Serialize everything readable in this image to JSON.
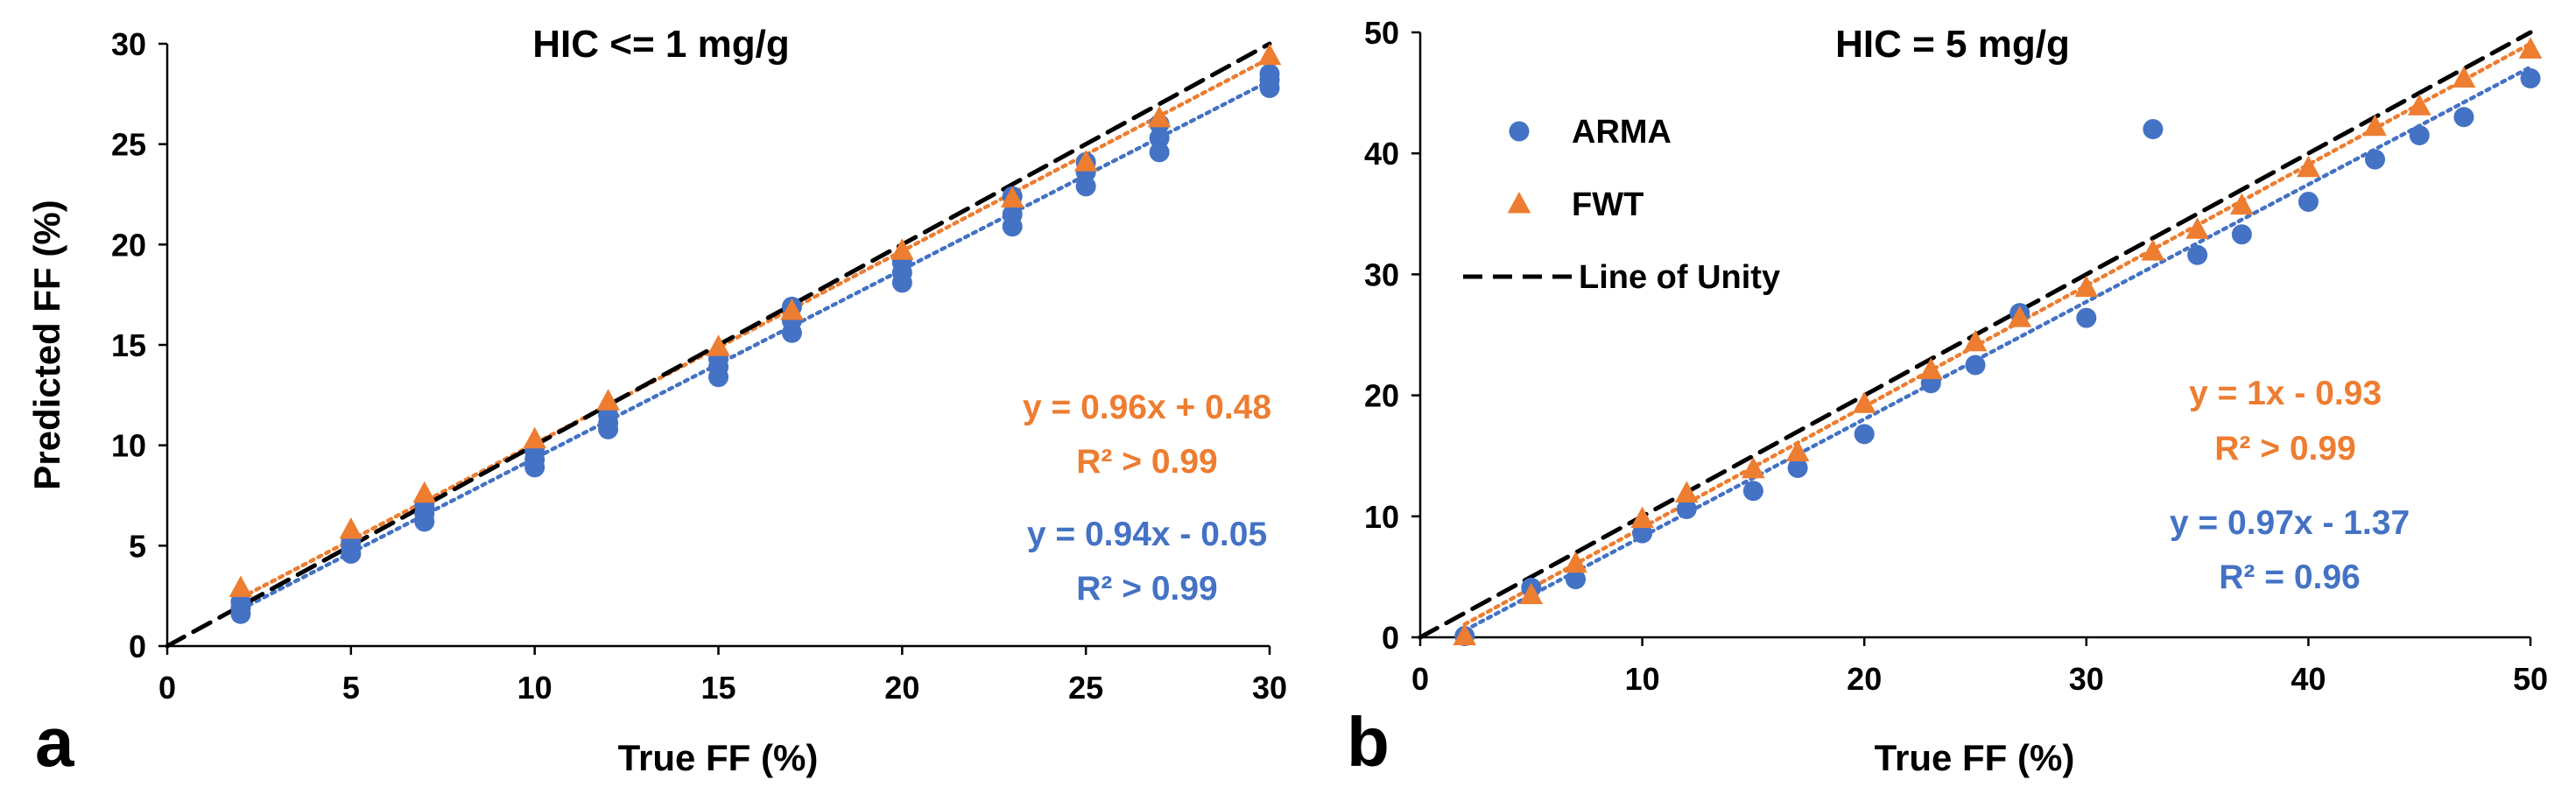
{
  "chart_data": [
    {
      "type": "scatter",
      "panel_label": "a",
      "title": "HIC <= 1 mg/g",
      "xlabel": "True FF (%)",
      "ylabel": "Predicted FF (%)",
      "xlim": [
        0,
        30
      ],
      "ylim": [
        0,
        30
      ],
      "xticks": [
        "0",
        "5",
        "10",
        "15",
        "20",
        "25",
        "30"
      ],
      "yticks": [
        "0",
        "5",
        "10",
        "15",
        "20",
        "25",
        "30"
      ],
      "grid": false,
      "series": [
        {
          "name": "ARMA",
          "marker": "circle",
          "color": "#4472C4",
          "x": [
            2,
            2,
            2,
            5,
            5,
            5,
            7,
            7,
            7,
            10,
            10,
            10,
            12,
            12,
            12,
            15,
            15,
            15,
            17,
            17,
            17,
            20,
            20,
            20,
            23,
            23,
            23,
            25,
            25,
            25,
            27,
            27,
            27,
            30,
            30,
            30
          ],
          "y": [
            1.6,
            1.9,
            2.2,
            4.6,
            4.9,
            5.2,
            6.2,
            6.6,
            7.0,
            8.9,
            9.3,
            9.7,
            10.8,
            11.1,
            11.5,
            13.4,
            13.9,
            14.3,
            15.6,
            16.2,
            16.9,
            18.1,
            18.6,
            19.1,
            20.9,
            21.5,
            22.4,
            22.9,
            23.6,
            24.1,
            24.6,
            25.3,
            26.0,
            27.8,
            28.2,
            28.5
          ]
        },
        {
          "name": "FWT",
          "marker": "triangle",
          "color": "#ED7D31",
          "x": [
            2,
            5,
            7,
            10,
            12,
            15,
            17,
            20,
            23,
            25,
            27,
            30
          ],
          "y": [
            2.9,
            5.8,
            7.6,
            10.3,
            12.2,
            14.9,
            16.7,
            19.7,
            22.3,
            24.1,
            26.3,
            29.4
          ]
        }
      ],
      "fits": [
        {
          "series": "ARMA",
          "slope": 0.94,
          "intercept": -0.05,
          "style": "dotted",
          "color": "#4472C4"
        },
        {
          "series": "FWT",
          "slope": 0.96,
          "intercept": 0.48,
          "style": "dotted",
          "color": "#ED7D31"
        },
        {
          "series": "Line of Unity",
          "slope": 1,
          "intercept": 0,
          "style": "dashed",
          "color": "#000000"
        }
      ],
      "annotations": [
        {
          "text": "y = 0.96x + 0.48",
          "color": "#ED7D31"
        },
        {
          "text": "R² > 0.99",
          "color": "#ED7D31"
        },
        {
          "text": "y = 0.94x - 0.05",
          "color": "#4472C4"
        },
        {
          "text": "R² > 0.99",
          "color": "#4472C4"
        }
      ]
    },
    {
      "type": "scatter",
      "panel_label": "b",
      "title": "HIC = 5 mg/g",
      "xlabel": "True FF (%)",
      "ylabel": "",
      "xlim": [
        0,
        50
      ],
      "ylim": [
        0,
        50
      ],
      "xticks": [
        "0",
        "10",
        "20",
        "30",
        "40",
        "50"
      ],
      "yticks": [
        "0",
        "10",
        "20",
        "30",
        "40",
        "50"
      ],
      "grid": false,
      "legend": {
        "position": "upper-left",
        "entries": [
          {
            "label": "ARMA",
            "marker": "circle",
            "color": "#4472C4"
          },
          {
            "label": "FWT",
            "marker": "triangle",
            "color": "#ED7D31"
          },
          {
            "label": "Line of Unity",
            "marker": "dashed-line",
            "color": "#000000"
          }
        ]
      },
      "series": [
        {
          "name": "ARMA",
          "marker": "circle",
          "color": "#4472C4",
          "x": [
            2,
            5,
            7,
            10,
            12,
            15,
            17,
            20,
            23,
            25,
            27,
            30,
            33,
            35,
            37,
            40,
            43,
            45,
            47,
            50
          ],
          "y": [
            0.1,
            4.1,
            4.8,
            8.6,
            10.6,
            12.1,
            14.0,
            16.8,
            21.0,
            22.5,
            26.8,
            26.4,
            42.0,
            31.6,
            33.3,
            36.0,
            39.5,
            41.5,
            43.0,
            46.2
          ]
        },
        {
          "name": "FWT",
          "marker": "triangle",
          "color": "#ED7D31",
          "x": [
            2,
            5,
            7,
            10,
            12,
            15,
            17,
            20,
            23,
            25,
            27,
            30,
            33,
            35,
            37,
            40,
            43,
            45,
            47,
            50
          ],
          "y": [
            0.1,
            3.5,
            6.1,
            9.8,
            11.9,
            13.9,
            15.3,
            19.3,
            22.1,
            24.4,
            26.4,
            28.9,
            31.9,
            33.7,
            35.7,
            38.8,
            42.2,
            43.9,
            46.2,
            48.6
          ]
        }
      ],
      "fits": [
        {
          "series": "ARMA",
          "slope": 0.97,
          "intercept": -1.37,
          "style": "dotted",
          "color": "#4472C4"
        },
        {
          "series": "FWT",
          "slope": 1,
          "intercept": -0.93,
          "style": "dotted",
          "color": "#ED7D31"
        },
        {
          "series": "Line of Unity",
          "slope": 1,
          "intercept": 0,
          "style": "dashed",
          "color": "#000000"
        }
      ],
      "annotations": [
        {
          "text": "y = 1x - 0.93",
          "color": "#ED7D31"
        },
        {
          "text": "R² > 0.99",
          "color": "#ED7D31"
        },
        {
          "text": "y = 0.97x - 1.37",
          "color": "#4472C4"
        },
        {
          "text": "R² = 0.96",
          "color": "#4472C4"
        }
      ]
    }
  ]
}
